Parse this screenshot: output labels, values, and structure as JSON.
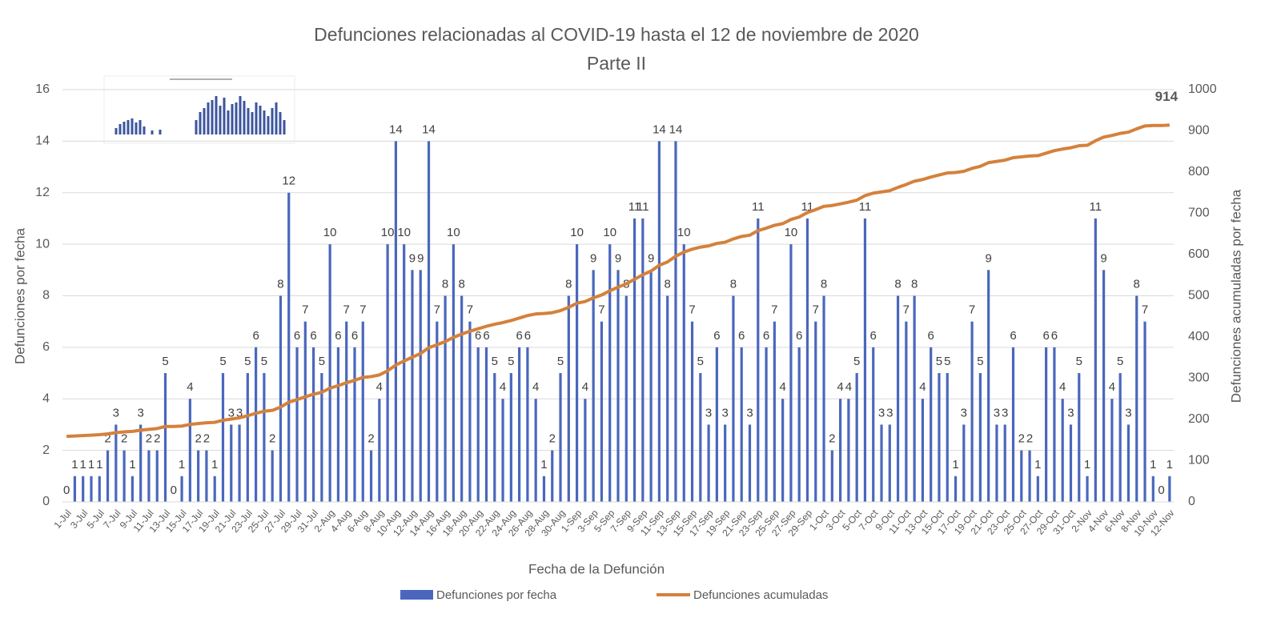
{
  "chart_data": {
    "type": "bar_line",
    "title": "Defunciones relacionadas al COVID-19 hasta el 12 de noviembre de 2020",
    "subtitle": "Parte II",
    "x_label": "Fecha de la Defunción",
    "y_label": "Defunciones por fecha",
    "y2_label": "Defunciones acumuladas por fecha",
    "categories": [
      "1-Jul",
      null,
      "3-Jul",
      null,
      "5-Jul",
      null,
      "7-Jul",
      null,
      "9-Jul",
      null,
      "11-Jul",
      null,
      "13-Jul",
      null,
      "15-Jul",
      null,
      "17-Jul",
      null,
      "19-Jul",
      null,
      "21-Jul",
      null,
      "23-Jul",
      null,
      "25-Jul",
      null,
      "27-Jul",
      null,
      "29-Jul",
      null,
      "31-Jul",
      null,
      "2-Aug",
      null,
      "4-Aug",
      null,
      "6-Aug",
      null,
      "8-Aug",
      null,
      "10-Aug",
      null,
      "12-Aug",
      null,
      "14-Aug",
      null,
      "16-Aug",
      null,
      "18-Aug",
      null,
      "20-Aug",
      null,
      "22-Aug",
      null,
      "24-Aug",
      null,
      "26-Aug",
      null,
      "28-Aug",
      null,
      "30-Aug",
      null,
      "1-Sep",
      null,
      "3-Sep",
      null,
      "5-Sep",
      null,
      "7-Sep",
      null,
      "9-Sep",
      null,
      "11-Sep",
      null,
      "13-Sep",
      null,
      "15-Sep",
      null,
      "17-Sep",
      null,
      "19-Sep",
      null,
      "21-Sep",
      null,
      "23-Sep",
      null,
      "25-Sep",
      null,
      "27-Sep",
      null,
      "29-Sep",
      null,
      "1-Oct",
      null,
      "3-Oct",
      null,
      "5-Oct",
      null,
      "7-Oct",
      null,
      "9-Oct",
      null,
      "11-Oct",
      null,
      "13-Oct",
      null,
      "15-Oct",
      null,
      "17-Oct",
      null,
      "19-Oct",
      null,
      "21-Oct",
      null,
      "23-Oct",
      null,
      "25-Oct",
      null,
      "27-Oct",
      null,
      "29-Oct",
      null,
      "31-Oct",
      null,
      "2-Nov",
      null,
      "4-Nov",
      null,
      "6-Nov",
      null,
      "8-Nov",
      null,
      "10-Nov",
      null,
      "12-Nov"
    ],
    "series": [
      {
        "name": "Defunciones por fecha",
        "color": "#4a67bd",
        "type": "bar",
        "values": [
          0,
          1,
          1,
          1,
          1,
          2,
          3,
          2,
          1,
          3,
          2,
          2,
          5,
          0,
          1,
          4,
          2,
          2,
          1,
          5,
          3,
          3,
          5,
          6,
          5,
          2,
          8,
          12,
          6,
          7,
          6,
          5,
          10,
          6,
          7,
          6,
          7,
          2,
          4,
          10,
          14,
          10,
          9,
          9,
          14,
          7,
          8,
          10,
          8,
          7,
          6,
          6,
          5,
          4,
          5,
          6,
          6,
          4,
          1,
          2,
          5,
          8,
          10,
          4,
          9,
          7,
          10,
          9,
          8,
          11,
          11,
          9,
          14,
          8,
          14,
          10,
          7,
          5,
          3,
          6,
          3,
          8,
          6,
          3,
          11,
          6,
          7,
          4,
          10,
          6,
          11,
          7,
          8,
          2,
          4,
          4,
          5,
          11,
          6,
          3,
          3,
          8,
          7,
          8,
          4,
          6,
          5,
          5,
          1,
          3,
          7,
          5,
          9,
          3,
          3,
          6,
          2,
          2,
          1,
          6,
          6,
          4,
          3,
          5,
          1,
          11,
          9,
          4,
          5,
          3,
          8,
          7,
          1,
          0,
          1
        ]
      },
      {
        "name": "Defunciones acumuladas",
        "color": "#d4813c",
        "type": "line",
        "axis": "y2",
        "values": [
          159,
          160,
          161,
          162,
          163,
          165,
          168,
          170,
          171,
          174,
          176,
          178,
          183,
          183,
          184,
          188,
          190,
          192,
          193,
          198,
          201,
          204,
          209,
          215,
          220,
          222,
          230,
          242,
          248,
          255,
          261,
          266,
          276,
          282,
          289,
          295,
          302,
          304,
          308,
          318,
          332,
          342,
          351,
          360,
          374,
          381,
          389,
          399,
          407,
          414,
          420,
          426,
          431,
          435,
          440,
          446,
          452,
          456,
          457,
          459,
          464,
          472,
          482,
          486,
          495,
          502,
          512,
          521,
          529,
          540,
          551,
          560,
          574,
          582,
          596,
          606,
          613,
          618,
          621,
          627,
          630,
          638,
          644,
          647,
          658,
          664,
          671,
          675,
          685,
          691,
          702,
          709,
          717,
          719,
          723,
          727,
          732,
          743,
          749,
          752,
          755,
          763,
          770,
          778,
          782,
          788,
          793,
          798,
          799,
          802,
          809,
          814,
          823,
          826,
          829,
          835,
          837,
          839,
          840,
          846,
          852,
          856,
          859,
          864,
          865,
          876,
          885,
          889,
          894,
          897,
          905,
          912,
          913,
          913,
          914
        ]
      }
    ],
    "ylim": [
      0,
      16
    ],
    "yticks": [
      0,
      2,
      4,
      6,
      8,
      10,
      12,
      14,
      16
    ],
    "y2lim": [
      0,
      1000
    ],
    "y2ticks": [
      0,
      100,
      200,
      300,
      400,
      500,
      600,
      700,
      800,
      900,
      1000
    ],
    "grid": true,
    "legend": "bottom"
  }
}
